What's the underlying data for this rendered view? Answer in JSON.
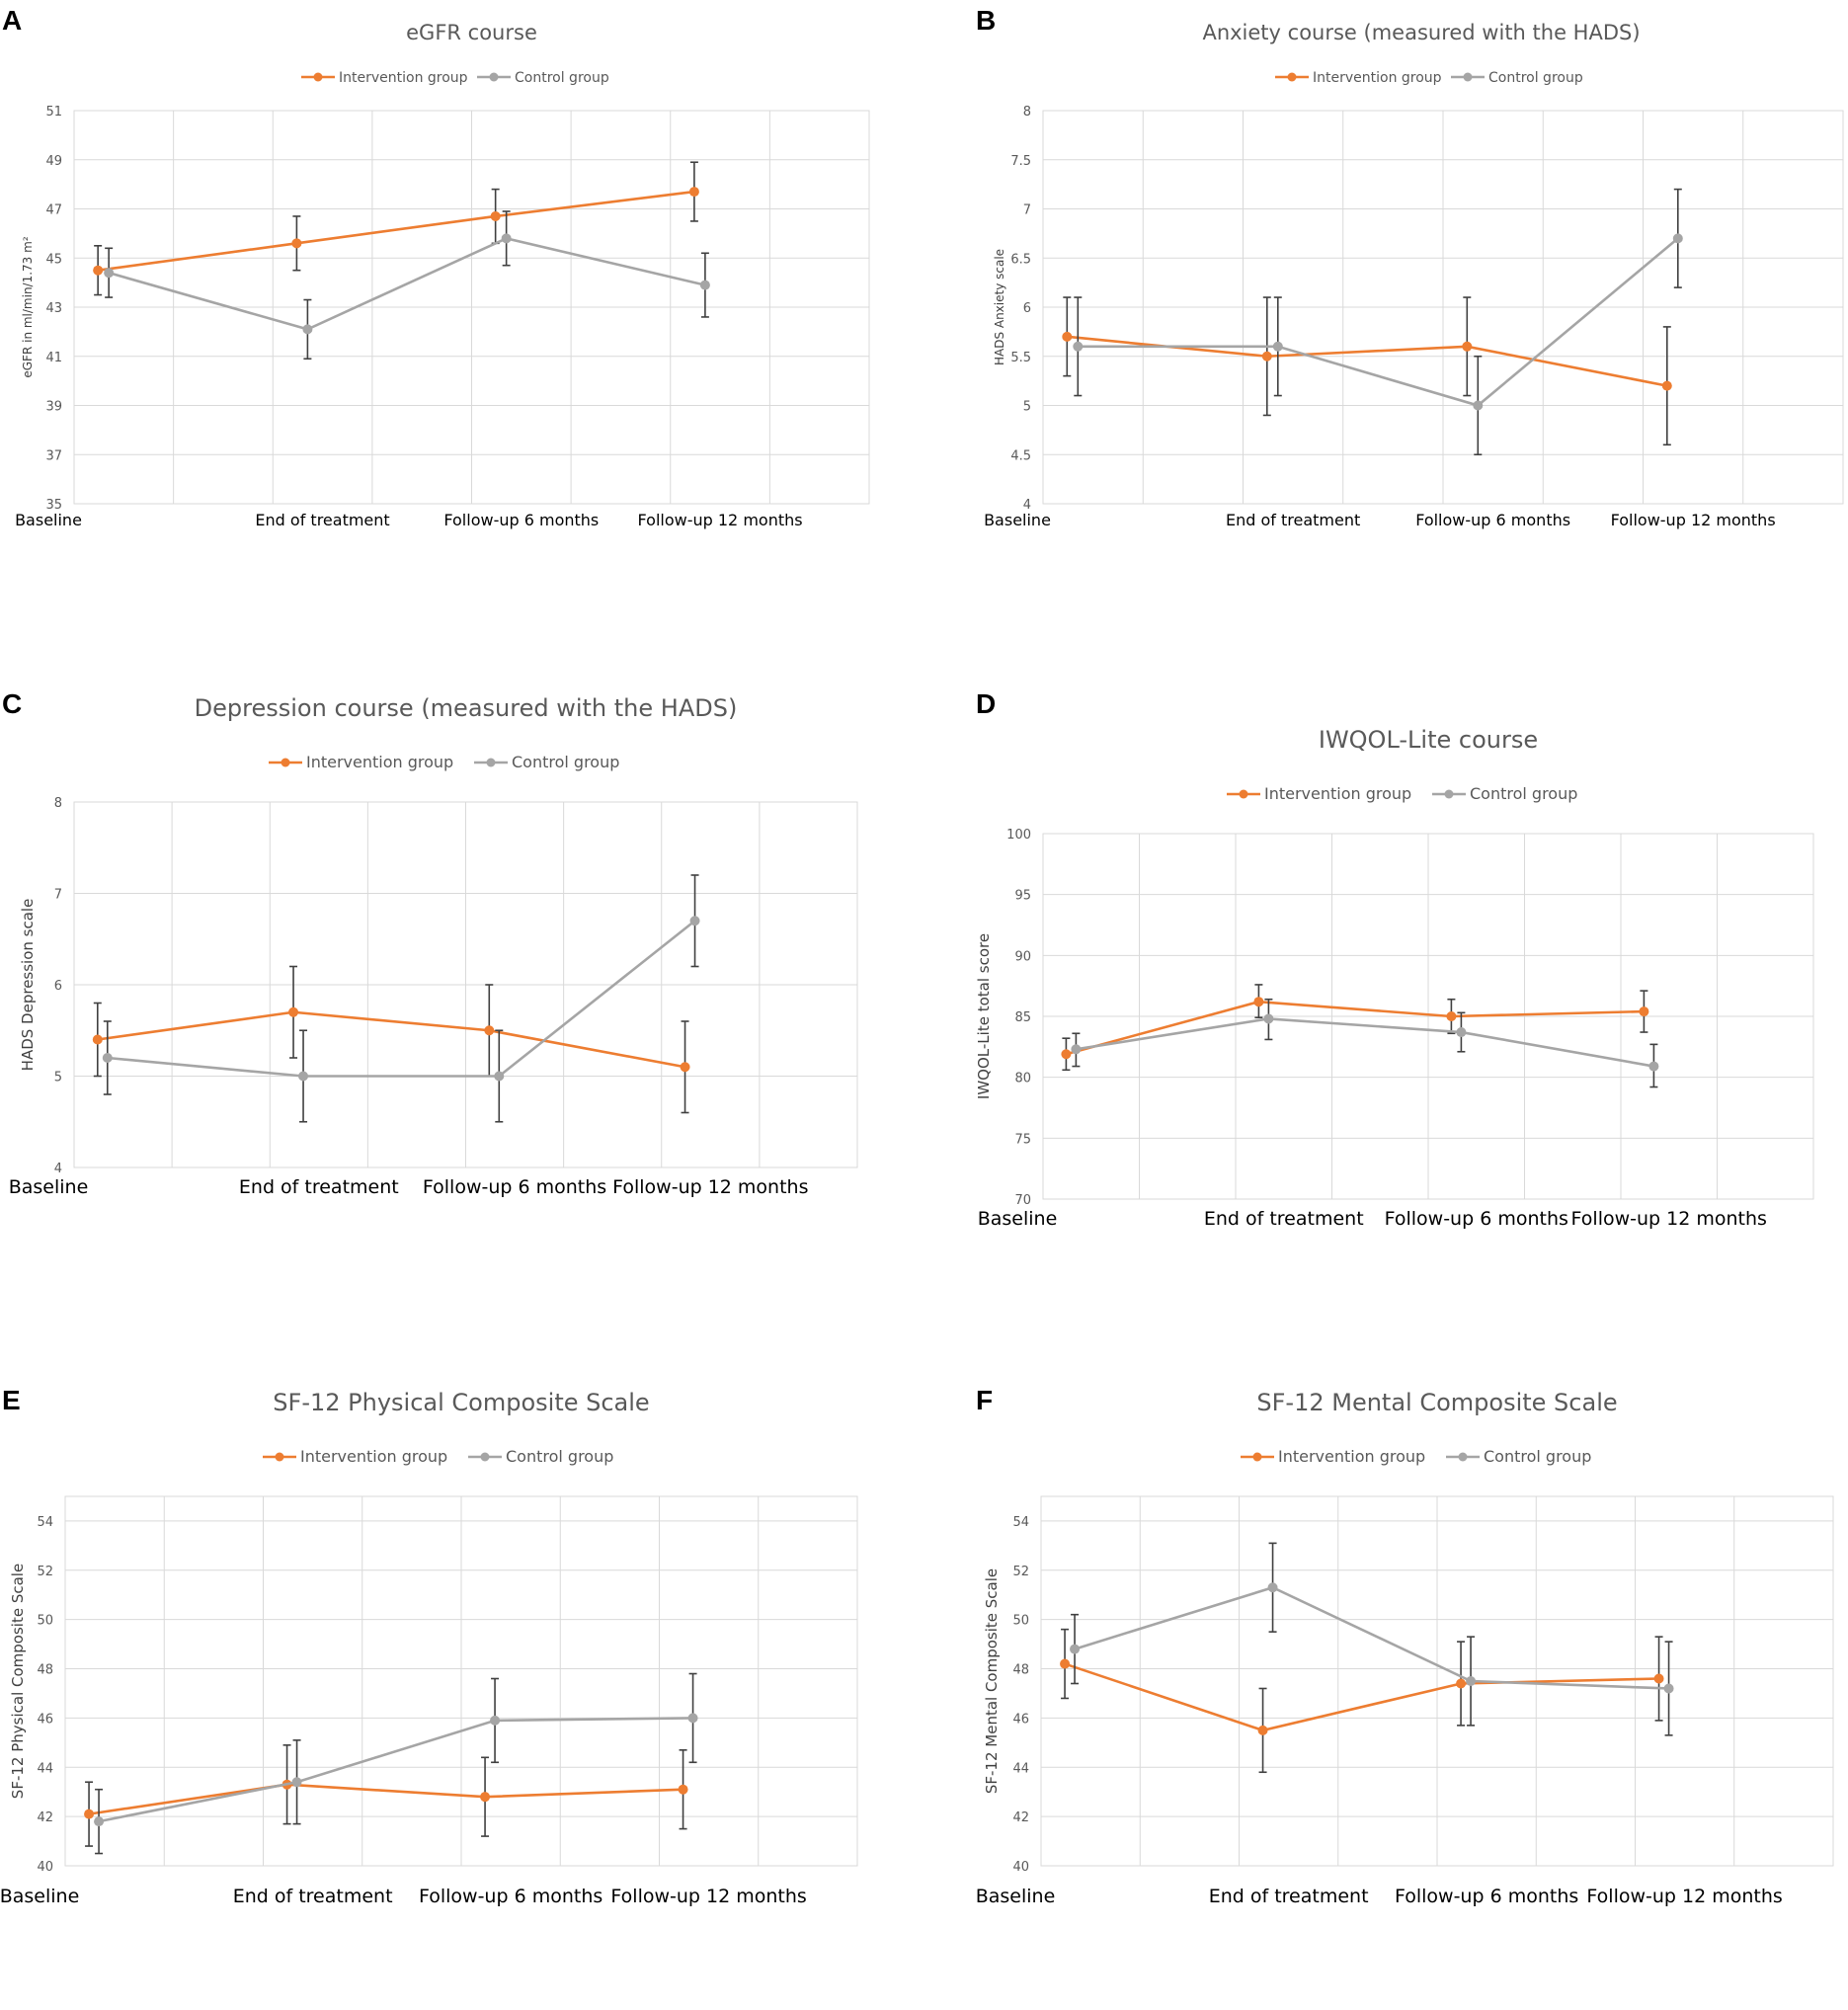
{
  "colors": {
    "intervention": "#ED7D31",
    "control": "#A5A5A5",
    "error_bar": "#404040",
    "grid": "#D9D9D9"
  },
  "chart_data": [
    {
      "panel": "A",
      "type": "line",
      "title": "eGFR course",
      "xlabel": "",
      "ylabel": "eGFR in ml/min/1.73 m²",
      "categories": [
        "Baseline",
        "End of treatment",
        "Follow-up 6 months",
        "Follow-up 12 months"
      ],
      "ylim": [
        35,
        51
      ],
      "ytick_step": 2,
      "yticks": [
        "35",
        "37",
        "39",
        "41",
        "43",
        "45",
        "47",
        "49",
        "51"
      ],
      "legend": [
        "Intervention group",
        "Control group"
      ],
      "legend_position": "top-center",
      "series": [
        {
          "name": "Intervention group",
          "values": [
            44.5,
            45.6,
            46.7,
            47.7
          ],
          "err_low": [
            43.5,
            44.5,
            45.6,
            46.5
          ],
          "err_high": [
            45.5,
            46.7,
            47.8,
            48.9
          ]
        },
        {
          "name": "Control group",
          "values": [
            44.4,
            42.1,
            45.8,
            43.9
          ],
          "err_low": [
            43.4,
            40.9,
            44.7,
            42.6
          ],
          "err_high": [
            45.4,
            43.3,
            46.9,
            45.2
          ]
        }
      ]
    },
    {
      "panel": "B",
      "type": "line",
      "title": "Anxiety course (measured with the HADS)",
      "xlabel": "",
      "ylabel": "HADS Anxiety scale",
      "categories": [
        "Baseline",
        "End of treatment",
        "Follow-up 6 months",
        "Follow-up 12 months"
      ],
      "ylim": [
        4,
        8
      ],
      "ytick_step": 0.5,
      "yticks": [
        "4",
        "4.5",
        "5",
        "5.5",
        "6",
        "6.5",
        "7",
        "7.5",
        "8"
      ],
      "legend": [
        "Intervention group",
        "Control group"
      ],
      "legend_position": "top-center",
      "series": [
        {
          "name": "Intervention group",
          "values": [
            5.7,
            5.5,
            5.6,
            5.2
          ],
          "err_low": [
            5.3,
            4.9,
            5.1,
            4.6
          ],
          "err_high": [
            6.1,
            6.1,
            6.1,
            5.8
          ]
        },
        {
          "name": "Control group",
          "values": [
            5.6,
            5.6,
            5.0,
            6.7
          ],
          "err_low": [
            5.1,
            5.1,
            4.5,
            6.2
          ],
          "err_high": [
            6.1,
            6.1,
            5.5,
            7.2
          ]
        }
      ]
    },
    {
      "panel": "C",
      "type": "line",
      "title": "Depression course (measured with the HADS)",
      "xlabel": "",
      "ylabel": "HADS Depression scale",
      "categories": [
        "Baseline",
        "End of treatment",
        "Follow-up 6 months",
        "Follow-up 12 months"
      ],
      "ylim": [
        4,
        8
      ],
      "ytick_step": 1,
      "yticks": [
        "4",
        "5",
        "6",
        "7",
        "8"
      ],
      "legend": [
        "Intervention group",
        "Control group"
      ],
      "legend_position": "top-center",
      "series": [
        {
          "name": "Intervention group",
          "values": [
            5.4,
            5.7,
            5.5,
            5.1
          ],
          "err_low": [
            5.0,
            5.2,
            5.0,
            4.6
          ],
          "err_high": [
            5.8,
            6.2,
            6.0,
            5.6
          ]
        },
        {
          "name": "Control group",
          "values": [
            5.2,
            5.0,
            5.0,
            6.7
          ],
          "err_low": [
            4.8,
            4.5,
            4.5,
            6.2
          ],
          "err_high": [
            5.6,
            5.5,
            5.5,
            7.2
          ]
        }
      ]
    },
    {
      "panel": "D",
      "type": "line",
      "title": "IWQOL-Lite course",
      "xlabel": "",
      "ylabel": "IWQOL-Lite total score",
      "categories": [
        "Baseline",
        "End of treatment",
        "Follow-up 6 months",
        "Follow-up 12 months"
      ],
      "ylim": [
        70,
        100
      ],
      "ytick_step": 5,
      "yticks": [
        "70",
        "75",
        "80",
        "85",
        "90",
        "95",
        "100"
      ],
      "legend": [
        "Intervention group",
        "Control group"
      ],
      "legend_position": "top-center",
      "series": [
        {
          "name": "Intervention group",
          "values": [
            81.9,
            86.2,
            85.0,
            85.4
          ],
          "err_low": [
            80.6,
            84.9,
            83.6,
            83.7
          ],
          "err_high": [
            83.2,
            87.6,
            86.4,
            87.1
          ]
        },
        {
          "name": "Control group",
          "values": [
            82.3,
            84.8,
            83.7,
            80.9
          ],
          "err_low": [
            80.9,
            83.1,
            82.1,
            79.2
          ],
          "err_high": [
            83.6,
            86.4,
            85.3,
            82.7
          ]
        }
      ]
    },
    {
      "panel": "E",
      "type": "line",
      "title": "SF-12 Physical Composite Scale",
      "xlabel": "",
      "ylabel": "SF-12 Physical Composite Scale",
      "categories": [
        "Baseline",
        "End of treatment",
        "Follow-up 6 months",
        "Follow-up 12 months"
      ],
      "ylim": [
        40,
        55
      ],
      "ytick_step": 2,
      "yticks": [
        "40",
        "42",
        "44",
        "46",
        "48",
        "50",
        "52",
        "54"
      ],
      "legend": [
        "Intervention group",
        "Control group"
      ],
      "legend_position": "top-center",
      "series": [
        {
          "name": "Intervention group",
          "values": [
            42.1,
            43.3,
            42.8,
            43.1
          ],
          "err_low": [
            40.8,
            41.7,
            41.2,
            41.5
          ],
          "err_high": [
            43.4,
            44.9,
            44.4,
            44.7
          ]
        },
        {
          "name": "Control group",
          "values": [
            41.8,
            43.4,
            45.9,
            46.0
          ],
          "err_low": [
            40.5,
            41.7,
            44.2,
            44.2
          ],
          "err_high": [
            43.1,
            45.1,
            47.6,
            47.8
          ]
        }
      ]
    },
    {
      "panel": "F",
      "type": "line",
      "title": "SF-12 Mental Composite Scale",
      "xlabel": "",
      "ylabel": "SF-12 Mental Composite Scale",
      "categories": [
        "Baseline",
        "End of treatment",
        "Follow-up 6 months",
        "Follow-up 12 months"
      ],
      "ylim": [
        40,
        55
      ],
      "ytick_step": 2,
      "yticks": [
        "40",
        "42",
        "44",
        "46",
        "48",
        "50",
        "52",
        "54"
      ],
      "legend": [
        "Intervention group",
        "Control group"
      ],
      "legend_position": "top-center",
      "series": [
        {
          "name": "Intervention group",
          "values": [
            48.2,
            45.5,
            47.4,
            47.6
          ],
          "err_low": [
            46.8,
            43.8,
            45.7,
            45.9
          ],
          "err_high": [
            49.6,
            47.2,
            49.1,
            49.3
          ]
        },
        {
          "name": "Control group",
          "values": [
            48.8,
            51.3,
            47.5,
            47.2
          ],
          "err_low": [
            47.4,
            49.5,
            45.7,
            45.3
          ],
          "err_high": [
            50.2,
            53.1,
            49.3,
            49.1
          ]
        }
      ]
    }
  ]
}
